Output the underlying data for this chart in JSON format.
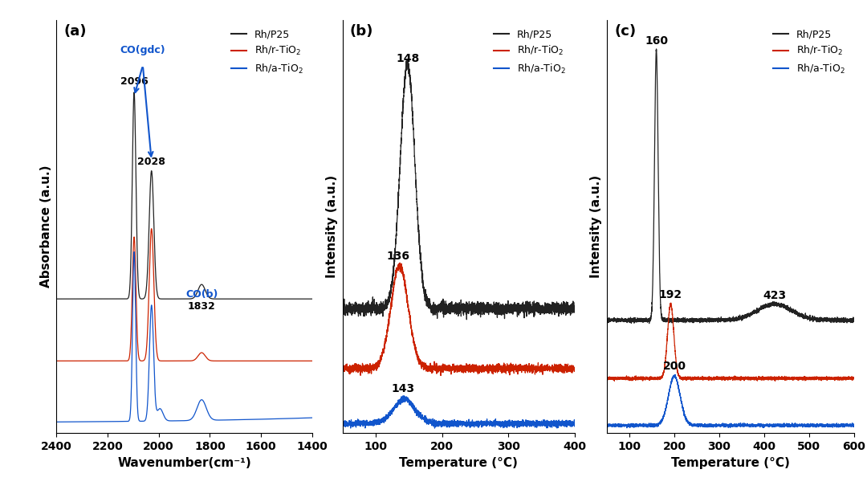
{
  "fig_width": 10.8,
  "fig_height": 6.2,
  "background_color": "#ffffff",
  "colors": {
    "black": "#222222",
    "red": "#cc2200",
    "blue": "#1155cc"
  },
  "panel_a": {
    "label": "(a)",
    "xlabel": "Wavenumber(cm⁻¹)",
    "ylabel": "Absorbance (a.u.)",
    "xlim": [
      2400,
      1400
    ],
    "xticks": [
      2400,
      2200,
      2000,
      1800,
      1600,
      1400
    ]
  },
  "panel_b": {
    "label": "(b)",
    "xlabel": "Temperature (°C)",
    "ylabel": "Intensity (a.u.)",
    "xlim": [
      50,
      400
    ],
    "xticks": [
      100,
      200,
      300,
      400
    ]
  },
  "panel_c": {
    "label": "(c)",
    "xlabel": "Temperature (°C)",
    "ylabel": "Intensity (a.u.)",
    "xlim": [
      50,
      600
    ],
    "xticks": [
      100,
      200,
      300,
      400,
      500,
      600
    ]
  },
  "legend_labels": [
    "Rh/P25",
    "Rh/r-TiO$_2$",
    "Rh/a-TiO$_2$"
  ]
}
